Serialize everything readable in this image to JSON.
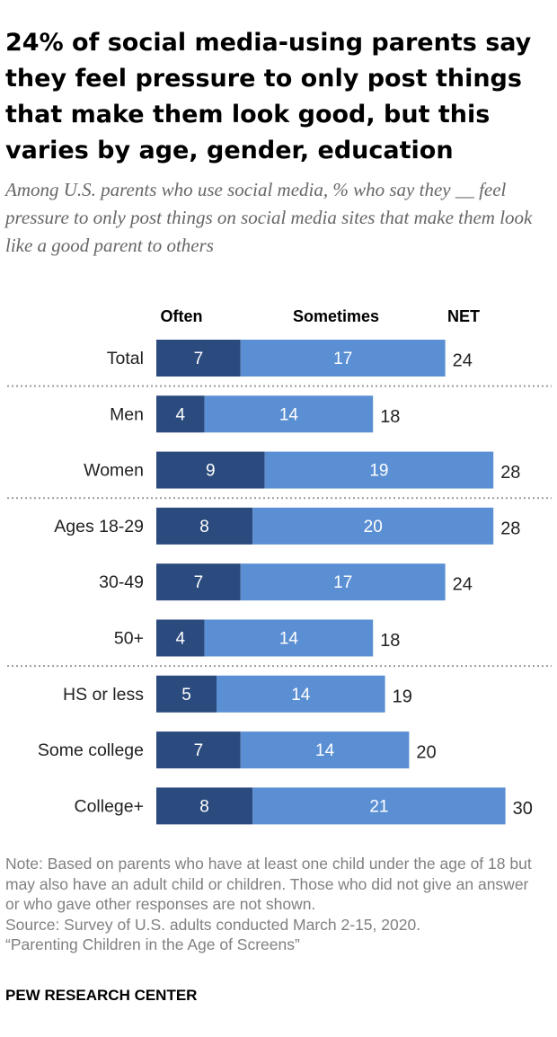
{
  "title": "24% of social media-using parents say they feel pressure to only post things that make them look good, but this varies by age, gender, education",
  "subtitle": "Among U.S. parents who use social media, % who say they __ feel pressure to only post things on social media sites that make them look like a good parent to others",
  "chart_data": {
    "type": "bar",
    "orientation": "horizontal",
    "stacked": true,
    "column_headers": [
      "Often",
      "Sometimes",
      "NET"
    ],
    "categories": [
      "Total",
      "Men",
      "Women",
      "Ages 18-29",
      "30-49",
      "50+",
      "HS or less",
      "Some college",
      "College+"
    ],
    "series": [
      {
        "name": "Often",
        "values": [
          7,
          4,
          9,
          8,
          7,
          4,
          5,
          7,
          8
        ],
        "color": "#2b4a7e"
      },
      {
        "name": "Sometimes",
        "values": [
          17,
          14,
          19,
          20,
          17,
          14,
          14,
          14,
          21
        ],
        "color": "#5b8fd3"
      }
    ],
    "net": [
      24,
      18,
      28,
      28,
      24,
      18,
      19,
      20,
      30
    ],
    "group_breaks_after": [
      "Total",
      "Women",
      "50+"
    ],
    "grid": false
  },
  "notes": [
    "Note: Based on parents who have at least one child under the age of 18 but may also have an adult child or children. Those who did not give an answer or who gave other responses are not shown.",
    "Source: Survey of U.S. adults conducted March 2-15, 2020.",
    "“Parenting Children in the Age of Screens”"
  ],
  "brand": "PEW RESEARCH CENTER"
}
